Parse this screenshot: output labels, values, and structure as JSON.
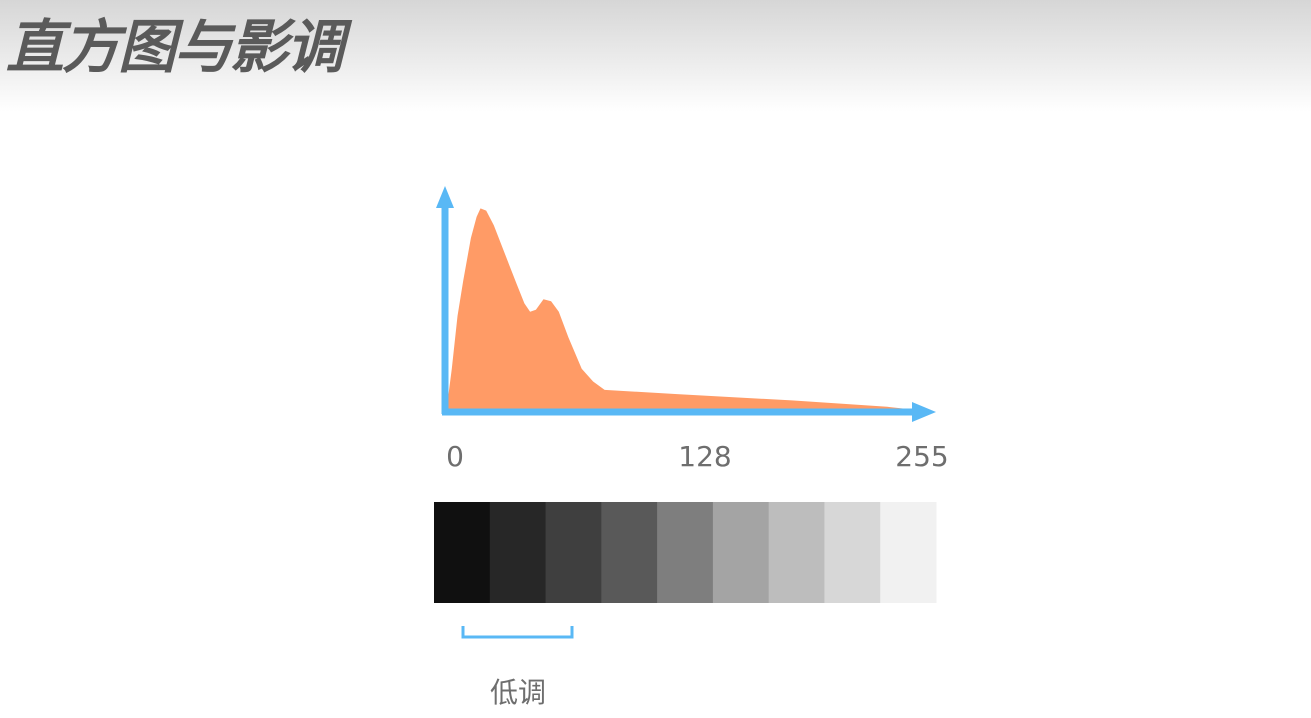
{
  "title": "直方图与影调",
  "chart_data": {
    "type": "area",
    "x_ticks": [
      "0",
      "128",
      "255"
    ],
    "xlim": [
      0,
      255
    ],
    "points": [
      [
        0,
        0.06
      ],
      [
        2,
        0.2
      ],
      [
        5,
        0.45
      ],
      [
        8,
        0.62
      ],
      [
        12,
        0.82
      ],
      [
        15,
        0.92
      ],
      [
        17,
        0.96
      ],
      [
        20,
        0.95
      ],
      [
        24,
        0.88
      ],
      [
        30,
        0.74
      ],
      [
        36,
        0.6
      ],
      [
        40,
        0.51
      ],
      [
        43,
        0.47
      ],
      [
        46,
        0.48
      ],
      [
        50,
        0.53
      ],
      [
        54,
        0.52
      ],
      [
        58,
        0.47
      ],
      [
        63,
        0.35
      ],
      [
        70,
        0.2
      ],
      [
        76,
        0.14
      ],
      [
        82,
        0.1
      ],
      [
        120,
        0.08
      ],
      [
        180,
        0.05
      ],
      [
        230,
        0.02
      ],
      [
        240,
        0.01
      ]
    ],
    "fill_color": "#ff9b66",
    "axis_color": "#59b8f5"
  },
  "gray_scale": [
    "#101010",
    "#272727",
    "#3f3f3f",
    "#595959",
    "#7e7e7e",
    "#a4a4a4",
    "#bdbdbd",
    "#d7d7d7",
    "#f1f1f1"
  ],
  "bracket": {
    "label": "低调",
    "color": "#59b8f5"
  }
}
